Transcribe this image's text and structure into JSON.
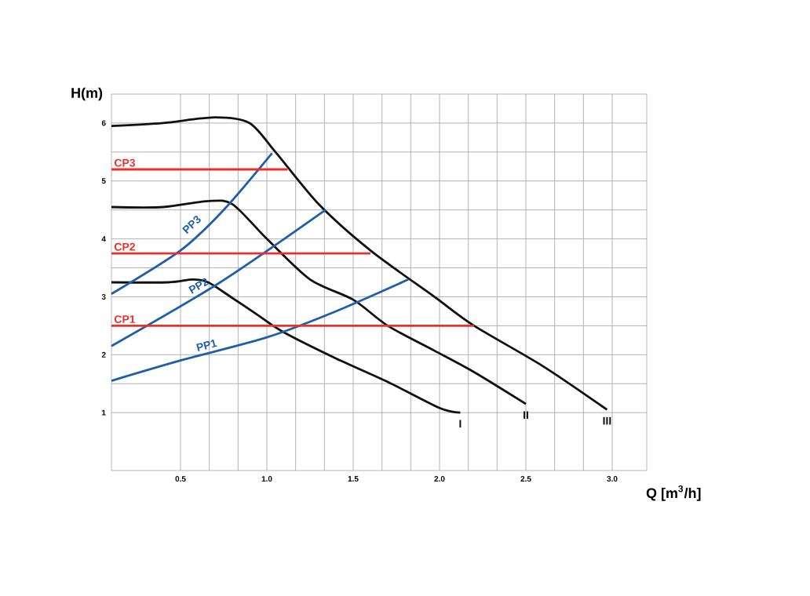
{
  "chart_data": {
    "type": "line",
    "xlabel": "Q [m$^{3}$/h]",
    "ylabel": "H(m)",
    "xlim": [
      0.1,
      3.2
    ],
    "ylim": [
      0,
      6.5
    ],
    "xticks": [
      0.5,
      {
        "value": 1.0,
        "label": "1.0"
      },
      1.5,
      {
        "value": 2.0,
        "label": "2.0"
      },
      2.5,
      {
        "value": 3.0,
        "label": "3.0"
      }
    ],
    "yticks": [
      1,
      2,
      3,
      4,
      5,
      6
    ],
    "grid": true,
    "series": [
      {
        "name": "III",
        "color": "#111111",
        "x": [
          0.1,
          0.4,
          0.7,
          0.9,
          1.05,
          1.3,
          1.6,
          1.97,
          2.2,
          2.6,
          2.97
        ],
        "values": [
          5.95,
          6.0,
          6.1,
          6.0,
          5.5,
          4.6,
          3.8,
          3.0,
          2.5,
          1.8,
          1.05
        ]
      },
      {
        "name": "II",
        "color": "#111111",
        "x": [
          0.1,
          0.4,
          0.65,
          0.8,
          1.0,
          1.25,
          1.5,
          1.7,
          1.97,
          2.2,
          2.5
        ],
        "values": [
          4.55,
          4.55,
          4.65,
          4.6,
          4.0,
          3.3,
          2.95,
          2.5,
          2.07,
          1.7,
          1.15
        ]
      },
      {
        "name": "I",
        "color": "#111111",
        "x": [
          0.1,
          0.43,
          0.57,
          0.66,
          0.79,
          0.94,
          1.09,
          1.39,
          1.7,
          2.0,
          2.12
        ],
        "values": [
          3.25,
          3.25,
          3.3,
          3.25,
          3.0,
          2.7,
          2.4,
          1.95,
          1.53,
          1.08,
          1.0
        ]
      },
      {
        "name": "PP3",
        "color": "#1f5fa8",
        "x": [
          0.1,
          0.5,
          0.75,
          1.03
        ],
        "values": [
          3.05,
          3.8,
          4.5,
          5.48
        ]
      },
      {
        "name": "PP2",
        "color": "#1f5fa8",
        "x": [
          0.1,
          0.73,
          1.34
        ],
        "values": [
          2.15,
          3.25,
          4.5
        ]
      },
      {
        "name": "PP1",
        "color": "#1f5fa8",
        "x": [
          0.1,
          0.5,
          1.0,
          1.4,
          1.82
        ],
        "values": [
          1.55,
          1.9,
          2.3,
          2.75,
          3.3
        ]
      },
      {
        "name": "CP3",
        "color": "#e8312a",
        "x": [
          0.1,
          1.12
        ],
        "values": [
          5.2,
          5.2
        ]
      },
      {
        "name": "CP2",
        "color": "#e8312a",
        "x": [
          0.1,
          1.6
        ],
        "values": [
          3.75,
          3.75
        ]
      },
      {
        "name": "CP1",
        "color": "#e8312a",
        "x": [
          0.1,
          2.2
        ],
        "values": [
          2.5,
          2.5
        ]
      }
    ]
  }
}
